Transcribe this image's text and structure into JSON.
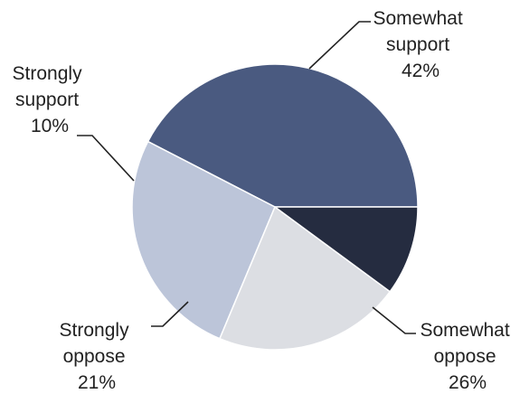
{
  "chart_data": {
    "type": "pie",
    "slices": [
      {
        "label_lines": [
          "Somewhat",
          "support"
        ],
        "pct_text": "42%",
        "value": 42,
        "color": "#4a5a80"
      },
      {
        "label_lines": [
          "Somewhat",
          "oppose"
        ],
        "pct_text": "26%",
        "value": 26,
        "color": "#bcc5d9"
      },
      {
        "label_lines": [
          "Strongly",
          "oppose"
        ],
        "pct_text": "21%",
        "value": 21,
        "color": "#dcdee3"
      },
      {
        "label_lines": [
          "Strongly",
          "support"
        ],
        "pct_text": "10%",
        "value": 10,
        "color": "#252c40"
      }
    ],
    "start_direction": "3 o'clock",
    "direction": "counterclockwise"
  }
}
